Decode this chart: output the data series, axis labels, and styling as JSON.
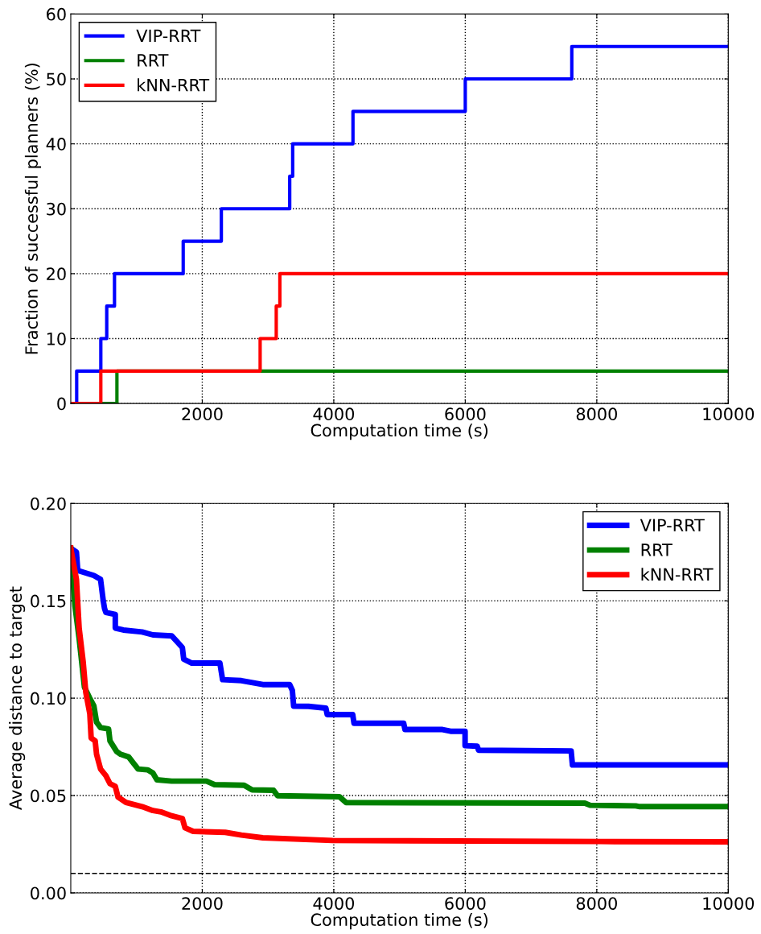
{
  "chart_data": [
    {
      "type": "step",
      "xlabel": "Computation time (s)",
      "ylabel": "Fraction of successful planners (%)",
      "xlim": [
        0,
        10000
      ],
      "xticks": [
        2000,
        4000,
        6000,
        8000,
        10000
      ],
      "ylim": [
        0,
        60
      ],
      "yticks": [
        0,
        10,
        20,
        30,
        40,
        50,
        60
      ],
      "grid": true,
      "legend": "top left",
      "line_style": "solid",
      "marker": "none",
      "series": [
        {
          "name": "VIP-RRT",
          "color": "#0000ff",
          "x": [
            0,
            90,
            457,
            547,
            665,
            1710,
            2290,
            3330,
            3375,
            4292,
            6000,
            7620,
            10000
          ],
          "values": [
            0,
            5,
            10,
            15,
            20,
            25,
            30,
            35,
            40,
            45,
            50,
            55,
            55
          ]
        },
        {
          "name": "RRT",
          "color": "#008000",
          "x": [
            0,
            702,
            10000
          ],
          "values": [
            0,
            5,
            5
          ]
        },
        {
          "name": "kNN-RRT",
          "color": "#ff0000",
          "x": [
            0,
            457,
            2880,
            3125,
            3180,
            10000
          ],
          "values": [
            0,
            5,
            10,
            15,
            20,
            20
          ]
        }
      ]
    },
    {
      "type": "line",
      "xlabel": "Computation time (s)",
      "ylabel": "Average distance to target",
      "xlim": [
        0,
        10000
      ],
      "xticks": [
        2000,
        4000,
        6000,
        8000,
        10000
      ],
      "ylim": [
        0,
        0.2
      ],
      "yticks": [
        {
          "value": 0,
          "label": "0.00"
        },
        {
          "value": 0.05,
          "label": "0.05"
        },
        {
          "value": 0.1,
          "label": "0.10"
        },
        {
          "value": 0.15,
          "label": "0.15"
        },
        {
          "value": 0.2,
          "label": "0.20"
        }
      ],
      "grid": true,
      "legend": "top right",
      "line_style": "solid",
      "marker": "none",
      "ref_lines": [
        {
          "axis": "y",
          "value": 0.01,
          "color": "#000000",
          "line_style": "dashed"
        }
      ],
      "series": [
        {
          "name": "VIP-RRT",
          "color": "#0000ff",
          "x": [
            0,
            86,
            106,
            351,
            453,
            494,
            514,
            534,
            677,
            677,
            800,
            1085,
            1249,
            1534,
            1616,
            1697,
            1718,
            1840,
            2268,
            2309,
            2595,
            2921,
            3329,
            3370,
            3390,
            3615,
            3880,
            3900,
            4288,
            4308,
            5063,
            5083,
            5653,
            5776,
            5997,
            5997,
            6182,
            6202,
            7610,
            7630,
            10000
          ],
          "values": [
            0.177,
            0.175,
            0.1656,
            0.163,
            0.161,
            0.15,
            0.146,
            0.144,
            0.143,
            0.136,
            0.135,
            0.134,
            0.1325,
            0.132,
            0.129,
            0.126,
            0.12,
            0.118,
            0.118,
            0.1095,
            0.109,
            0.107,
            0.107,
            0.104,
            0.0959,
            0.0958,
            0.0949,
            0.0916,
            0.0916,
            0.0871,
            0.0871,
            0.0839,
            0.0839,
            0.083,
            0.083,
            0.0756,
            0.0753,
            0.0733,
            0.0729,
            0.0657,
            0.0657
          ]
        },
        {
          "name": "RRT",
          "color": "#008000",
          "x": [
            0,
            65,
            127,
            208,
            290,
            351,
            392,
            453,
            575,
            596,
            698,
            759,
            881,
            942,
            1024,
            1167,
            1249,
            1310,
            1534,
            2064,
            2187,
            2636,
            2758,
            3084,
            3145,
            4084,
            4186,
            7818,
            7899,
            8593,
            8654,
            10000
          ],
          "values": [
            0.177,
            0.147,
            0.1307,
            0.1056,
            0.0999,
            0.0961,
            0.0877,
            0.0849,
            0.0842,
            0.0781,
            0.0726,
            0.0712,
            0.0698,
            0.0671,
            0.0636,
            0.0632,
            0.0616,
            0.0581,
            0.0574,
            0.0574,
            0.0556,
            0.0553,
            0.0529,
            0.0527,
            0.0499,
            0.0494,
            0.0464,
            0.0461,
            0.045,
            0.0447,
            0.0443,
            0.0443
          ]
        },
        {
          "name": "kNN-RRT",
          "color": "#ff0000",
          "x": [
            0,
            86,
            127,
            188,
            229,
            290,
            310,
            371,
            392,
            453,
            534,
            596,
            677,
            718,
            840,
            1085,
            1249,
            1371,
            1534,
            1697,
            1738,
            1861,
            2350,
            2595,
            2921,
            3982,
            8059,
            10000
          ],
          "values": [
            0.177,
            0.161,
            0.136,
            0.1188,
            0.1029,
            0.0919,
            0.0795,
            0.0781,
            0.0712,
            0.0636,
            0.0602,
            0.0561,
            0.0547,
            0.0492,
            0.0464,
            0.0443,
            0.0423,
            0.0416,
            0.0396,
            0.0382,
            0.0334,
            0.0316,
            0.0311,
            0.0297,
            0.0283,
            0.0269,
            0.0264,
            0.0262
          ]
        }
      ]
    }
  ]
}
